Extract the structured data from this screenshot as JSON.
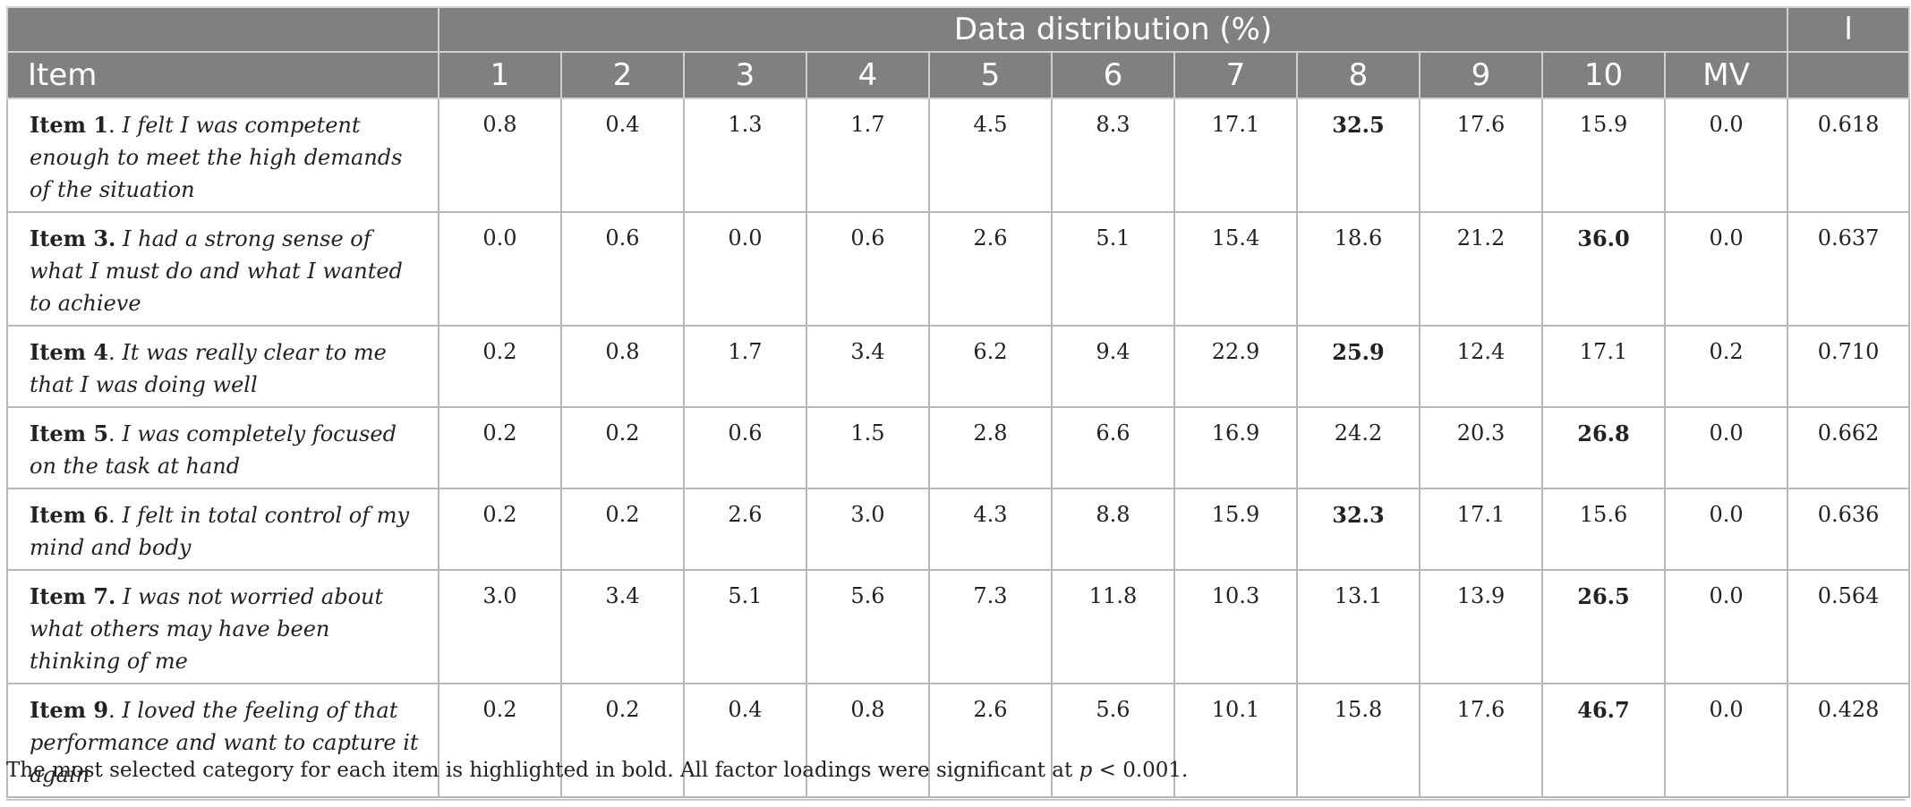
{
  "table": {
    "group_header": "Data distribution (%)",
    "l_header": "l",
    "item_header": "Item",
    "columns": [
      "1",
      "2",
      "3",
      "4",
      "5",
      "6",
      "7",
      "8",
      "9",
      "10",
      "MV"
    ],
    "rows": [
      {
        "label": "Item 1",
        "text": "I felt I was competent enough to meet the high demands of the situation",
        "values": [
          "0.8",
          "0.4",
          "1.3",
          "1.7",
          "4.5",
          "8.3",
          "17.1",
          "32.5",
          "17.6",
          "15.9",
          "0.0"
        ],
        "bold_index": 7,
        "l": "0.618",
        "label_suffix": "."
      },
      {
        "label": "Item 3.",
        "text": "I had a strong sense of what I must do and what I wanted to achieve",
        "values": [
          "0.0",
          "0.6",
          "0.0",
          "0.6",
          "2.6",
          "5.1",
          "15.4",
          "18.6",
          "21.2",
          "36.0",
          "0.0"
        ],
        "bold_index": 9,
        "l": "0.637",
        "label_suffix": ""
      },
      {
        "label": "Item 4",
        "text": "It was really clear to me that I was doing well",
        "values": [
          "0.2",
          "0.8",
          "1.7",
          "3.4",
          "6.2",
          "9.4",
          "22.9",
          "25.9",
          "12.4",
          "17.1",
          "0.2"
        ],
        "bold_index": 7,
        "l": "0.710",
        "label_suffix": "."
      },
      {
        "label": "Item 5",
        "text": "I was completely focused on the task at hand",
        "values": [
          "0.2",
          "0.2",
          "0.6",
          "1.5",
          "2.8",
          "6.6",
          "16.9",
          "24.2",
          "20.3",
          "26.8",
          "0.0"
        ],
        "bold_index": 9,
        "l": "0.662",
        "label_suffix": "."
      },
      {
        "label": "Item 6",
        "text": "I felt in total control of my mind and body",
        "values": [
          "0.2",
          "0.2",
          "2.6",
          "3.0",
          "4.3",
          "8.8",
          "15.9",
          "32.3",
          "17.1",
          "15.6",
          "0.0"
        ],
        "bold_index": 7,
        "l": "0.636",
        "label_suffix": "."
      },
      {
        "label": "Item 7.",
        "text": "I was not worried about what others may have been thinking of me",
        "values": [
          "3.0",
          "3.4",
          "5.1",
          "5.6",
          "7.3",
          "11.8",
          "10.3",
          "13.1",
          "13.9",
          "26.5",
          "0.0"
        ],
        "bold_index": 9,
        "l": "0.564",
        "label_suffix": ""
      },
      {
        "label": "Item 9",
        "text": "I loved the feeling of that performance and want to capture it again",
        "values": [
          "0.2",
          "0.2",
          "0.4",
          "0.8",
          "2.6",
          "5.6",
          "10.1",
          "15.8",
          "17.6",
          "46.7",
          "0.0"
        ],
        "bold_index": 9,
        "l": "0.428",
        "label_suffix": "."
      }
    ]
  },
  "footnote": {
    "prefix": "The most selected category for each item is highlighted in bold. All factor loadings were significant at ",
    "p_symbol": "p",
    "suffix": " < 0.001."
  }
}
